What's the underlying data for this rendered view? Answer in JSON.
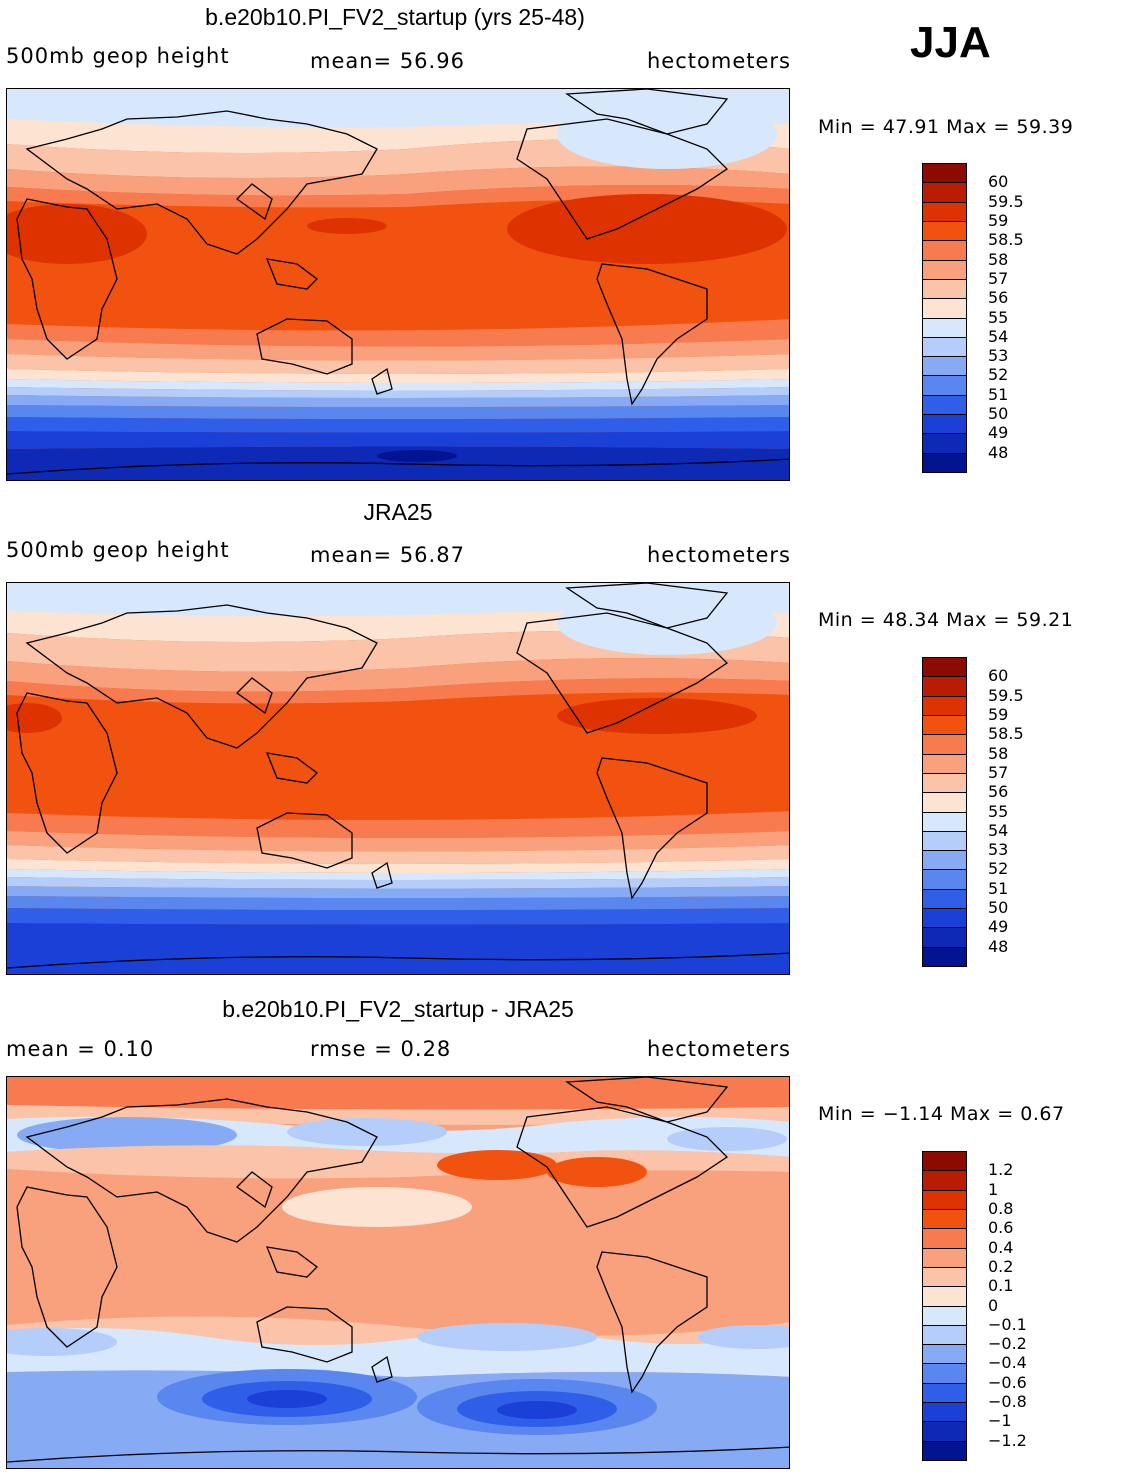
{
  "season_label": "JJA",
  "panels": [
    {
      "title": "b.e20b10.PI_FV2_startup (yrs 25-48)",
      "left_label": "500mb geop height",
      "mid_label": "mean=   56.96",
      "units": "hectometers",
      "min_max": "Min =   47.91  Max =   59.39",
      "legend_labels": [
        "60",
        "59.5",
        "59",
        "58.5",
        "58",
        "57",
        "56",
        "55",
        "54",
        "53",
        "52",
        "51",
        "50",
        "49",
        "48"
      ],
      "legend_colors": [
        "#8c0a00",
        "#b91c00",
        "#de3300",
        "#f2520f",
        "#f77b4e",
        "#f9a07c",
        "#fbc3a8",
        "#fde3d1",
        "#d7e8fd",
        "#b4cdfa",
        "#86aaf3",
        "#5a86ef",
        "#2f5ee9",
        "#1a40d8",
        "#0d29b5",
        "#02148f"
      ],
      "chart_data": {
        "type": "heatmap",
        "title": "b.e20b10.PI_FV2_startup (yrs 25-48)",
        "variable": "500mb geop height",
        "units": "hectometers",
        "mean": 56.96,
        "min": 47.91,
        "max": 59.39,
        "contour_levels": [
          48,
          49,
          50,
          51,
          52,
          53,
          54,
          55,
          56,
          57,
          58,
          58.5,
          59,
          59.5,
          60
        ],
        "zonal_profile_north_to_south": [
          54.5,
          55.5,
          56.5,
          57.5,
          58.5,
          58.8,
          58.7,
          58.6,
          58.5,
          58.3,
          57.8,
          57.0,
          55.5,
          53.5,
          51.5,
          50.0,
          49.0,
          48.5
        ]
      }
    },
    {
      "title": "JRA25",
      "left_label": "500mb geop height",
      "mid_label": "mean=   56.87",
      "units": "hectometers",
      "min_max": "Min =   48.34  Max =   59.21",
      "legend_labels": [
        "60",
        "59.5",
        "59",
        "58.5",
        "58",
        "57",
        "56",
        "55",
        "54",
        "53",
        "52",
        "51",
        "50",
        "49",
        "48"
      ],
      "legend_colors": [
        "#8c0a00",
        "#b91c00",
        "#de3300",
        "#f2520f",
        "#f77b4e",
        "#f9a07c",
        "#fbc3a8",
        "#fde3d1",
        "#d7e8fd",
        "#b4cdfa",
        "#86aaf3",
        "#5a86ef",
        "#2f5ee9",
        "#1a40d8",
        "#0d29b5",
        "#02148f"
      ],
      "chart_data": {
        "type": "heatmap",
        "title": "JRA25",
        "variable": "500mb geop height",
        "units": "hectometers",
        "mean": 56.87,
        "min": 48.34,
        "max": 59.21,
        "contour_levels": [
          48,
          49,
          50,
          51,
          52,
          53,
          54,
          55,
          56,
          57,
          58,
          58.5,
          59,
          59.5,
          60
        ],
        "zonal_profile_north_to_south": [
          54.5,
          55.5,
          56.3,
          57.3,
          58.2,
          58.6,
          58.6,
          58.5,
          58.4,
          58.2,
          57.6,
          56.8,
          55.3,
          53.6,
          51.8,
          50.4,
          49.5,
          49.0
        ]
      }
    },
    {
      "title": "b.e20b10.PI_FV2_startup - JRA25",
      "left_label": "mean =     0.10",
      "mid_label": "rmse =     0.28",
      "units": "hectometers",
      "min_max": "Min =   −1.14  Max =     0.67",
      "legend_labels": [
        "1.2",
        "1",
        "0.8",
        "0.6",
        "0.4",
        "0.2",
        "0.1",
        "0",
        "−0.1",
        "−0.2",
        "−0.4",
        "−0.6",
        "−0.8",
        "−1",
        "−1.2"
      ],
      "legend_colors": [
        "#8c0a00",
        "#b91c00",
        "#de3300",
        "#f2520f",
        "#f77b4e",
        "#f9a07c",
        "#fbc3a8",
        "#fde3d1",
        "#d7e8fd",
        "#b4cdfa",
        "#86aaf3",
        "#5a86ef",
        "#2f5ee9",
        "#1a40d8",
        "#0d29b5",
        "#02148f"
      ],
      "chart_data": {
        "type": "heatmap",
        "title": "b.e20b10.PI_FV2_startup - JRA25",
        "units": "hectometers",
        "mean": 0.1,
        "rmse": 0.28,
        "min": -1.14,
        "max": 0.67,
        "contour_levels": [
          -1.2,
          -1,
          -0.8,
          -0.6,
          -0.4,
          -0.2,
          -0.1,
          0,
          0.1,
          0.2,
          0.4,
          0.6,
          0.8,
          1,
          1.2
        ],
        "zonal_profile_north_to_south": [
          0.5,
          -0.2,
          0.0,
          0.3,
          0.2,
          0.15,
          0.2,
          0.15,
          0.2,
          0.15,
          0.1,
          -0.05,
          0.05,
          -0.4,
          -0.7,
          -0.5,
          -0.3,
          -0.25
        ]
      }
    }
  ]
}
